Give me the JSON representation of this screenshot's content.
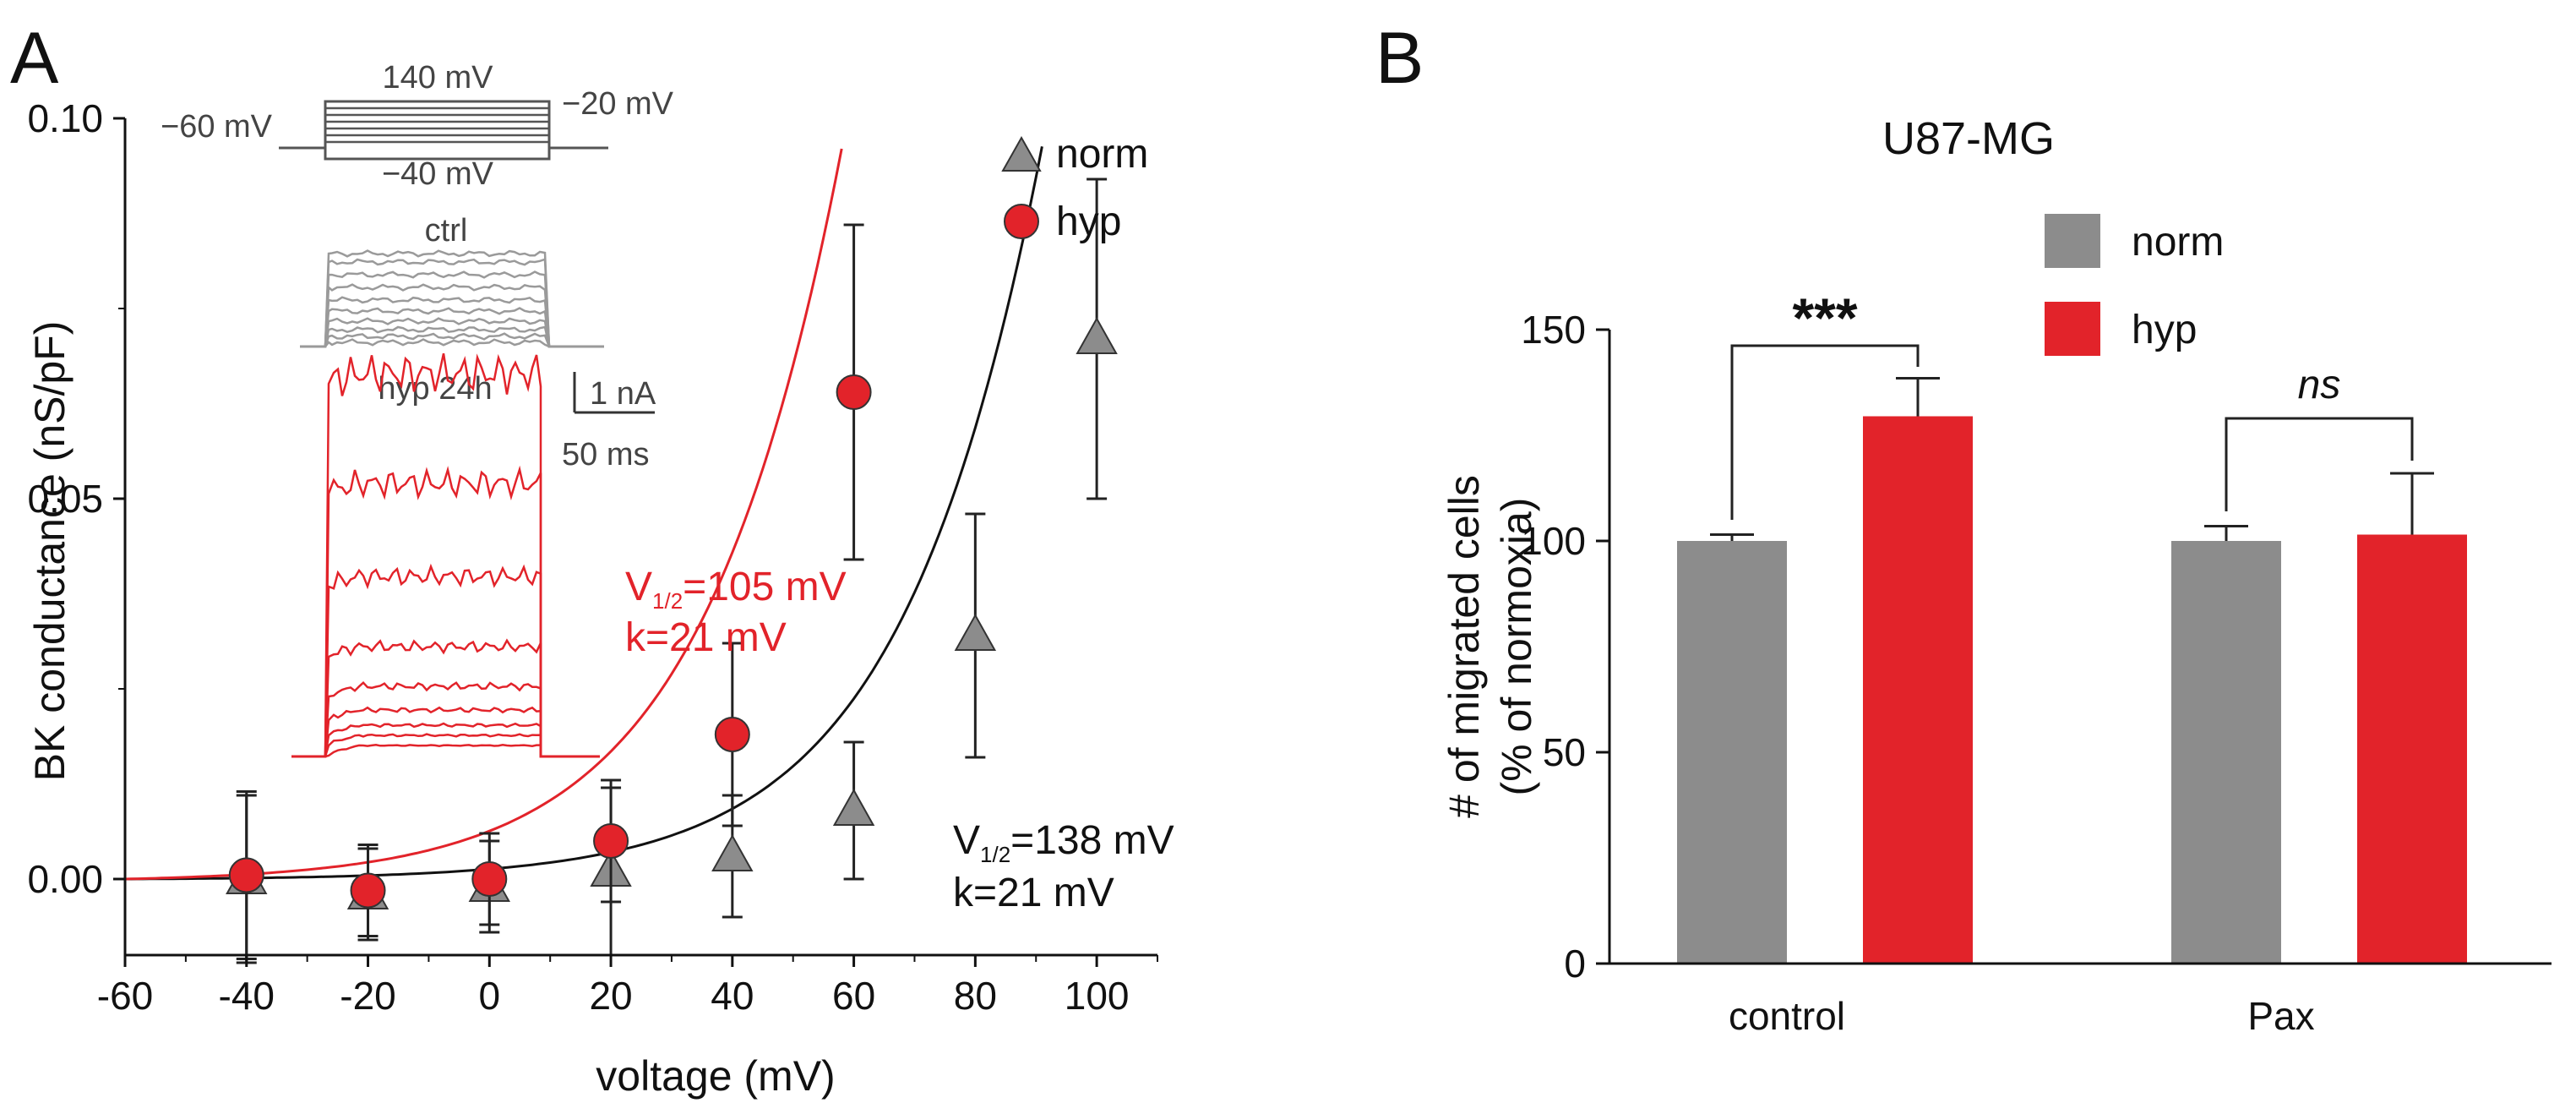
{
  "colors": {
    "norm": "#8c8c8c",
    "hyp": "#e2232a",
    "axis": "#111111",
    "ctrl_trace": "#9a9a9a"
  },
  "chart_data": [
    {
      "panel": "A",
      "type": "scatter",
      "title": "",
      "xlabel": "voltage (mV)",
      "ylabel": "BK conductance (nS/pF)",
      "xlim": [
        -60,
        110
      ],
      "ylim": [
        -0.01,
        0.1
      ],
      "xticks": [
        -60,
        -40,
        -20,
        0,
        20,
        40,
        60,
        80,
        100
      ],
      "yticks": [
        0.0,
        0.05,
        0.1
      ],
      "ytick_labels": [
        "0.00",
        "0.05",
        "0.10"
      ],
      "series": [
        {
          "name": "norm",
          "marker": "triangle",
          "x": [
            -40,
            -20,
            0,
            20,
            40,
            60,
            80,
            100
          ],
          "y": [
            0.0,
            -0.002,
            -0.001,
            0.001,
            0.003,
            0.009,
            0.032,
            0.071
          ],
          "err": [
            0.011,
            0.006,
            0.006,
            0.011,
            0.008,
            0.009,
            0.016,
            0.021
          ]
        },
        {
          "name": "hyp",
          "marker": "circle",
          "x": [
            -40,
            -20,
            0,
            20,
            40,
            60
          ],
          "y": [
            0.0005,
            -0.0015,
            0.0,
            0.005,
            0.019,
            0.064
          ],
          "err": [
            0.011,
            0.006,
            0.006,
            0.008,
            0.012,
            0.022
          ]
        }
      ],
      "fits": [
        {
          "name": "norm",
          "v_half_label": "V1/2=138 mV",
          "v_half_main": "V",
          "v_half_sub": "1/2",
          "v_half_rest": "=138 mV",
          "k_label": "k=21 mV",
          "v_half": 138,
          "k": 21,
          "x_range": [
            -60,
            110
          ]
        },
        {
          "name": "hyp",
          "v_half_label": "V1/2=105 mV",
          "v_half_main": "V",
          "v_half_sub": "1/2",
          "v_half_rest": "=105 mV",
          "k_label": "k=21 mV",
          "v_half": 105,
          "k": 21,
          "x_range": [
            -60,
            77
          ]
        }
      ],
      "legend": {
        "placement": "top-right",
        "entries": [
          "norm",
          "hyp"
        ]
      },
      "inset": {
        "protocol": {
          "top_label": "140 mV",
          "left_label": "−60 mV",
          "right_label": "−20 mV",
          "bottom_label": "−40 mV"
        },
        "ctrl_label": "ctrl",
        "hyp_label": "hyp 24h",
        "scale_current": "1 nA",
        "scale_time": "50 ms"
      }
    },
    {
      "panel": "B",
      "type": "bar",
      "title": "U87-MG",
      "xlabel": "",
      "ylabel": "# of migrated cells",
      "ylabel2": "(% of normoxia)",
      "categories": [
        "control",
        "Pax"
      ],
      "ylim": [
        0,
        150
      ],
      "yticks": [
        0,
        50,
        100,
        150
      ],
      "series": [
        {
          "name": "norm",
          "values": [
            100,
            100
          ],
          "err": [
            1.5,
            3.5
          ]
        },
        {
          "name": "hyp",
          "values": [
            129.5,
            101.5
          ],
          "err": [
            9,
            14.5
          ]
        }
      ],
      "legend": {
        "placement": "top-center",
        "entries": [
          "norm",
          "hyp"
        ]
      },
      "annotations": [
        {
          "category": "control",
          "label": "***",
          "italic": false
        },
        {
          "category": "Pax",
          "label": "ns",
          "italic": true
        }
      ]
    }
  ]
}
